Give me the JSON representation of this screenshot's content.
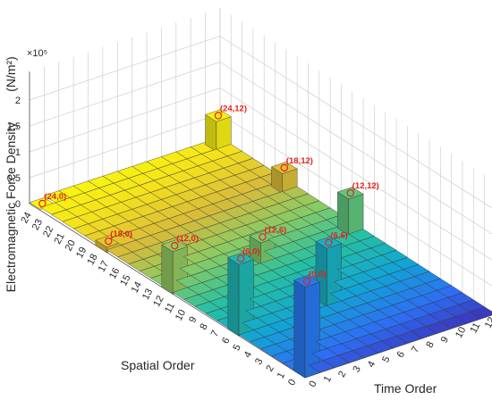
{
  "chart_data": {
    "type": "bar3d",
    "title": "",
    "ylabel_z": "Electromagnetic Force Density",
    "ylabel_z_unit": "(N/m²)",
    "z_multiplier": "×10⁵",
    "xlabel": "Spatial Order",
    "ylabel": "Time Order",
    "z_ticks": [
      "0",
      "0.5",
      "1",
      "1.5",
      "2"
    ],
    "zlim": [
      0,
      2.5
    ],
    "spatial_orders": [
      24,
      23,
      22,
      21,
      20,
      19,
      18,
      17,
      16,
      15,
      14,
      13,
      12,
      11,
      10,
      9,
      8,
      7,
      6,
      5,
      4,
      3,
      2,
      1,
      0
    ],
    "time_orders": [
      0,
      1,
      2,
      3,
      4,
      5,
      6,
      7,
      8,
      9,
      10,
      11,
      12
    ],
    "colormap": [
      "#3e26a8",
      "#2d6ef5",
      "#12a4d6",
      "#25c0a3",
      "#86cb66",
      "#d8bb3a",
      "#f5e11c",
      "#f9fb0e"
    ],
    "peaks": [
      {
        "label": "(24,0)",
        "spatial": 24,
        "time": 0,
        "value": 0.02
      },
      {
        "label": "(18,0)",
        "spatial": 18,
        "time": 0,
        "value": 0.1
      },
      {
        "label": "(12,0)",
        "spatial": 12,
        "time": 0,
        "value": 0.82
      },
      {
        "label": "(6,0)",
        "spatial": 6,
        "time": 0,
        "value": 1.38
      },
      {
        "label": "(0,0)",
        "spatial": 0,
        "time": 0,
        "value": 1.75
      },
      {
        "label": "(12,6)",
        "spatial": 12,
        "time": 6,
        "value": 0.42
      },
      {
        "label": "(6,6)",
        "spatial": 6,
        "time": 6,
        "value": 1.12
      },
      {
        "label": "(24,12)",
        "spatial": 24,
        "time": 12,
        "value": 0.58
      },
      {
        "label": "(18,12)",
        "spatial": 18,
        "time": 12,
        "value": 0.38
      },
      {
        "label": "(12,12)",
        "spatial": 12,
        "time": 12,
        "value": 0.7
      }
    ],
    "grid": true
  }
}
